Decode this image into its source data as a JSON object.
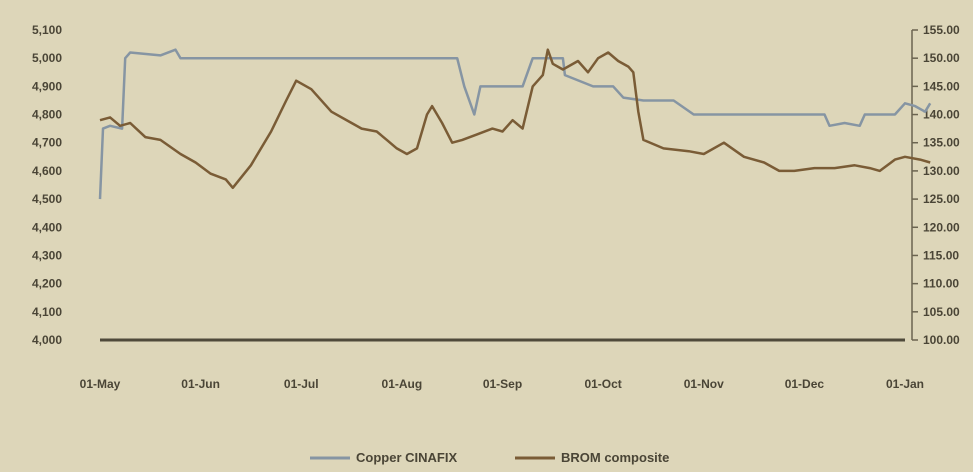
{
  "chart_data": {
    "type": "line",
    "title": "",
    "xlabel": "",
    "ylabel_left": "",
    "ylabel_right": "",
    "x_categories": [
      "01-May",
      "01-Jun",
      "01-Jul",
      "01-Aug",
      "01-Sep",
      "01-Oct",
      "01-Nov",
      "01-Dec",
      "01-Jan"
    ],
    "x_tick_labels": [
      "01-May",
      "01-Jun",
      "01-Jul",
      "01-Aug",
      "01-Sep",
      "01-Oct",
      "01-Nov",
      "01-Dec",
      "01-Jan"
    ],
    "y_left_ticks": [
      "4,000",
      "4,100",
      "4,200",
      "4,300",
      "4,400",
      "4,500",
      "4,600",
      "4,700",
      "4,800",
      "4,900",
      "5,000",
      "5,100"
    ],
    "y_right_ticks": [
      "100.00",
      "105.00",
      "110.00",
      "115.00",
      "120.00",
      "125.00",
      "130.00",
      "135.00",
      "140.00",
      "145.00",
      "150.00",
      "155.00"
    ],
    "y_left_range": [
      4000,
      5100
    ],
    "y_right_range": [
      100,
      155
    ],
    "grid": false,
    "legend_position": "bottom",
    "series": [
      {
        "name": "Copper CINAFIX",
        "axis": "right",
        "color": "#8695a3",
        "points": [
          [
            0,
            125
          ],
          [
            0.03,
            137.5
          ],
          [
            0.1,
            138
          ],
          [
            0.22,
            137.5
          ],
          [
            0.25,
            150
          ],
          [
            0.3,
            151
          ],
          [
            0.6,
            150.5
          ],
          [
            0.75,
            151.5
          ],
          [
            0.8,
            150
          ],
          [
            1.2,
            150
          ],
          [
            1.6,
            150
          ],
          [
            2.0,
            150
          ],
          [
            2.4,
            150
          ],
          [
            2.8,
            150
          ],
          [
            3.2,
            150
          ],
          [
            3.55,
            150
          ],
          [
            3.62,
            145
          ],
          [
            3.72,
            140
          ],
          [
            3.78,
            145
          ],
          [
            4.0,
            145
          ],
          [
            4.2,
            145
          ],
          [
            4.3,
            150
          ],
          [
            4.6,
            150
          ],
          [
            4.62,
            147
          ],
          [
            4.9,
            145
          ],
          [
            5.1,
            145
          ],
          [
            5.2,
            143
          ],
          [
            5.4,
            142.5
          ],
          [
            5.7,
            142.5
          ],
          [
            5.9,
            140
          ],
          [
            6.3,
            140
          ],
          [
            6.8,
            140
          ],
          [
            7.2,
            140
          ],
          [
            7.25,
            138
          ],
          [
            7.4,
            138.5
          ],
          [
            7.55,
            138
          ],
          [
            7.6,
            140
          ],
          [
            7.9,
            140
          ],
          [
            8.0,
            142
          ],
          [
            8.1,
            141.5
          ],
          [
            8.2,
            140.5
          ],
          [
            8.25,
            142
          ]
        ]
      },
      {
        "name": "BROM composite",
        "axis": "right",
        "color": "#7a5c36",
        "points": [
          [
            0,
            139
          ],
          [
            0.1,
            139.5
          ],
          [
            0.2,
            138
          ],
          [
            0.3,
            138.5
          ],
          [
            0.45,
            136
          ],
          [
            0.6,
            135.5
          ],
          [
            0.8,
            133
          ],
          [
            0.95,
            131.5
          ],
          [
            1.1,
            129.5
          ],
          [
            1.25,
            128.5
          ],
          [
            1.32,
            127
          ],
          [
            1.5,
            131
          ],
          [
            1.7,
            137
          ],
          [
            1.85,
            142.5
          ],
          [
            1.95,
            146
          ],
          [
            2.1,
            144.5
          ],
          [
            2.3,
            140.5
          ],
          [
            2.5,
            138.5
          ],
          [
            2.6,
            137.5
          ],
          [
            2.75,
            137
          ],
          [
            2.85,
            135.5
          ],
          [
            2.95,
            134
          ],
          [
            3.05,
            133
          ],
          [
            3.15,
            134
          ],
          [
            3.25,
            140
          ],
          [
            3.3,
            141.5
          ],
          [
            3.4,
            138.5
          ],
          [
            3.5,
            135
          ],
          [
            3.6,
            135.5
          ],
          [
            3.75,
            136.5
          ],
          [
            3.9,
            137.5
          ],
          [
            4.0,
            137
          ],
          [
            4.1,
            139
          ],
          [
            4.2,
            137.5
          ],
          [
            4.3,
            145
          ],
          [
            4.4,
            147
          ],
          [
            4.45,
            151.5
          ],
          [
            4.5,
            149
          ],
          [
            4.6,
            148
          ],
          [
            4.75,
            149.5
          ],
          [
            4.85,
            147.5
          ],
          [
            4.95,
            150
          ],
          [
            5.05,
            151
          ],
          [
            5.15,
            149.5
          ],
          [
            5.25,
            148.5
          ],
          [
            5.3,
            147.5
          ],
          [
            5.35,
            140.5
          ],
          [
            5.4,
            135.5
          ],
          [
            5.6,
            134
          ],
          [
            5.85,
            133.5
          ],
          [
            6.0,
            133
          ],
          [
            6.2,
            135
          ],
          [
            6.4,
            132.5
          ],
          [
            6.6,
            131.5
          ],
          [
            6.75,
            130
          ],
          [
            6.9,
            130
          ],
          [
            7.1,
            130.5
          ],
          [
            7.3,
            130.5
          ],
          [
            7.5,
            131
          ],
          [
            7.65,
            130.5
          ],
          [
            7.75,
            130
          ],
          [
            7.9,
            132
          ],
          [
            8.0,
            132.5
          ],
          [
            8.15,
            132
          ],
          [
            8.25,
            131.5
          ]
        ]
      }
    ]
  }
}
